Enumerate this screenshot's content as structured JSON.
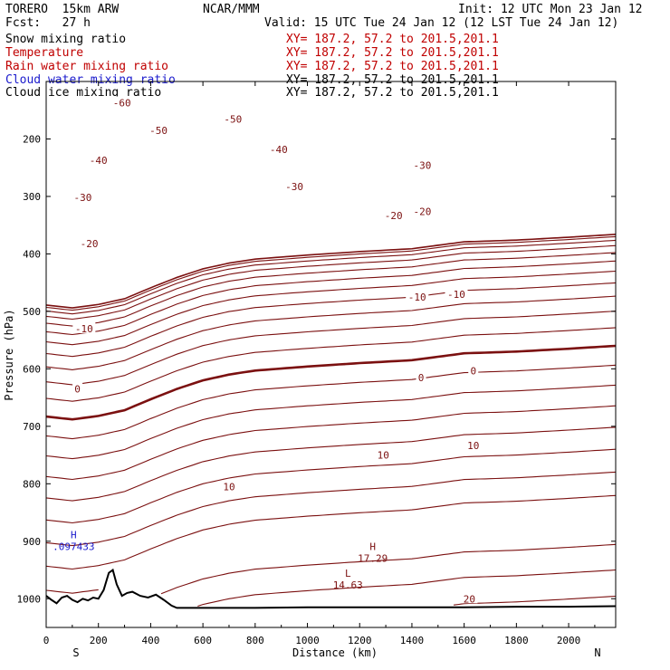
{
  "header": {
    "model": "TORERO  15km ARW",
    "center": "NCAR/MMM",
    "init": "Init: 12 UTC Mon 23 Jan 12",
    "fcst": "Fcst:   27 h",
    "valid": "Valid: 15 UTC Tue 24 Jan 12 (12 LST Tue 24 Jan 12)"
  },
  "fields": [
    {
      "name": "Snow mixing ratio",
      "xy": "XY= 187.2, 57.2 to 201.5,201.1",
      "color": "#000000"
    },
    {
      "name": "Temperature",
      "xy": "XY= 187.2, 57.2 to 201.5,201.1",
      "color": "#c00000"
    },
    {
      "name": "Rain water mixing ratio",
      "xy": "XY= 187.2, 57.2 to 201.5,201.1",
      "color": "#c00000"
    },
    {
      "name": "Cloud water mixing ratio",
      "xy": "XY= 187.2, 57.2 to 201.5,201.1",
      "color": "#1a1acc"
    },
    {
      "name": "Cloud ice mixing ratio",
      "xy": "XY= 187.2, 57.2 to 201.5,201.1",
      "color": "#000000"
    }
  ],
  "chart_data": {
    "type": "cross-section contour",
    "xlabel": "Distance (km)",
    "ylabel": "Pressure (hPa)",
    "xlim": [
      0,
      2180
    ],
    "ylim": [
      1050,
      100
    ],
    "xticks": [
      0,
      200,
      400,
      600,
      800,
      1000,
      1200,
      1400,
      1600,
      1800,
      2000
    ],
    "yticks": [
      200,
      300,
      400,
      500,
      600,
      700,
      800,
      900,
      1000
    ],
    "end_labels": {
      "left": "S",
      "right": "N"
    },
    "contour_color": "#7b1010",
    "freezing_level": {
      "label": "0",
      "x": [
        0,
        100,
        200,
        300,
        400,
        500,
        600,
        700,
        800,
        1000,
        1200,
        1400,
        1600,
        1800,
        2000,
        2180
      ],
      "p": [
        683,
        688,
        682,
        672,
        653,
        635,
        620,
        610,
        603,
        596,
        590,
        585,
        573,
        570,
        565,
        560
      ]
    },
    "isotherm_labels": [
      {
        "text": "-60",
        "x": 290,
        "p": 137
      },
      {
        "text": "-50",
        "x": 430,
        "p": 185
      },
      {
        "text": "-50",
        "x": 715,
        "p": 165
      },
      {
        "text": "-40",
        "x": 200,
        "p": 237
      },
      {
        "text": "-40",
        "x": 890,
        "p": 218
      },
      {
        "text": "-30",
        "x": 140,
        "p": 302
      },
      {
        "text": "-30",
        "x": 950,
        "p": 283
      },
      {
        "text": "-30",
        "x": 1440,
        "p": 246
      },
      {
        "text": "-20",
        "x": 165,
        "p": 382
      },
      {
        "text": "-20",
        "x": 1330,
        "p": 333
      },
      {
        "text": "-20",
        "x": 1440,
        "p": 326
      },
      {
        "text": "-10",
        "x": 145,
        "p": 530
      },
      {
        "text": "-10",
        "x": 1420,
        "p": 475
      },
      {
        "text": "-10",
        "x": 1570,
        "p": 470
      },
      {
        "text": "0",
        "x": 120,
        "p": 635
      },
      {
        "text": "0",
        "x": 1435,
        "p": 615
      },
      {
        "text": "0",
        "x": 1635,
        "p": 603
      },
      {
        "text": "10",
        "x": 700,
        "p": 805
      },
      {
        "text": "10",
        "x": 1290,
        "p": 750
      },
      {
        "text": "10",
        "x": 1635,
        "p": 733
      },
      {
        "text": "20",
        "x": 1620,
        "p": 1000
      }
    ],
    "extrema": [
      {
        "type": "H",
        "value": "17.29",
        "x": 1250,
        "p": 915,
        "color": "#7b1010"
      },
      {
        "type": "L",
        "value": "14.63",
        "x": 1155,
        "p": 962,
        "color": "#7b1010"
      },
      {
        "type": "H",
        "value": ".097433",
        "x": 105,
        "p": 895,
        "color": "#1a1acc"
      }
    ],
    "terrain": {
      "x": [
        0,
        20,
        40,
        60,
        80,
        100,
        120,
        140,
        160,
        180,
        200,
        220,
        240,
        255,
        270,
        290,
        310,
        330,
        360,
        390,
        420,
        450,
        480,
        500,
        600,
        800,
        1000,
        1200,
        1400,
        1600,
        1800,
        2000,
        2180
      ],
      "p": [
        995,
        1002,
        1008,
        998,
        995,
        1002,
        1006,
        1000,
        1003,
        998,
        1000,
        985,
        955,
        950,
        975,
        995,
        990,
        988,
        995,
        998,
        993,
        1002,
        1012,
        1016,
        1016,
        1016,
        1015,
        1015,
        1015,
        1015,
        1014,
        1014,
        1013
      ]
    }
  }
}
